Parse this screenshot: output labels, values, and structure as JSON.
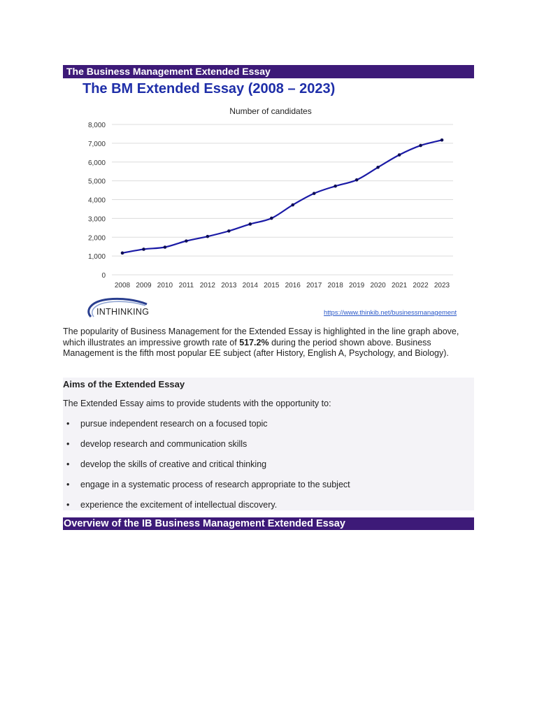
{
  "header": {
    "top_banner": "The Business Management Extended Essay",
    "chart_heading": "The BM Extended Essay (2008 – 2023)",
    "bottom_banner": "Overview of the IB Business Management Extended Essay"
  },
  "logo": {
    "text": "INTHINKING"
  },
  "source_link": "https://www.thinkib.net/businessmanagement",
  "paragraph": {
    "before_bold": "The popularity of Business Management for the Extended Essay is highlighted in the line graph above, which illustrates an impressive growth rate of ",
    "bold": "517.2%",
    "after_bold": " during the period shown above. Business Management is the fifth most popular EE subject (after History, English A, Psychology, and Biology)."
  },
  "aims": {
    "heading": "Aims of the Extended Essay",
    "intro": "The Extended Essay aims to provide students with the opportunity to:",
    "items": [
      "pursue independent research on a focused topic",
      "develop research and communication skills",
      "develop the skills of creative and critical thinking",
      "engage in a systematic process of research appropriate to the subject",
      "experience the excitement of intellectual discovery."
    ]
  },
  "colors": {
    "banner": "#3d1a78",
    "heading_blue": "#1e2ea8",
    "line": "#1a1aa6",
    "link": "#2a58c8"
  },
  "chart_data": {
    "type": "line",
    "title": "Number of candidates",
    "x": [
      "2008",
      "2009",
      "2010",
      "2011",
      "2012",
      "2013",
      "2014",
      "2015",
      "2016",
      "2017",
      "2018",
      "2019",
      "2020",
      "2021",
      "2022",
      "2023"
    ],
    "series": [
      {
        "values": [
          1160,
          1360,
          1470,
          1800,
          2040,
          2330,
          2700,
          3010,
          3720,
          4330,
          4720,
          5050,
          5720,
          6380,
          6880,
          7170
        ]
      }
    ],
    "yticks": [
      "0",
      "1,000",
      "2,000",
      "3,000",
      "4,000",
      "5,000",
      "6,000",
      "7,000",
      "8,000"
    ],
    "ylim": [
      0,
      8000
    ],
    "grid": true,
    "legend": "none"
  }
}
